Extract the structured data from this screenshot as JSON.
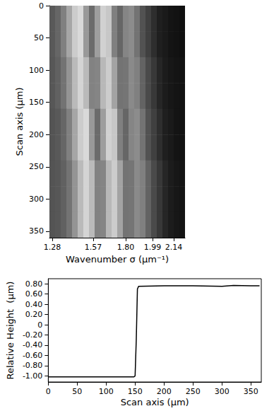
{
  "chart_data": [
    {
      "type": "heatmap",
      "x_label": "Wavenumber σ (μm⁻¹)",
      "y_label": "Scan axis (μm)",
      "xlim": [
        1.26,
        2.22
      ],
      "xticks": [
        1.28,
        1.57,
        {
          "value": 1.8,
          "label": "1.80"
        },
        1.99,
        2.14
      ],
      "ylim": [
        0,
        360
      ],
      "yticks": [
        0,
        50,
        100,
        150,
        200,
        250,
        300,
        350
      ],
      "zlim": [
        0,
        1
      ],
      "x_bins": [
        1.26,
        1.3,
        1.34,
        1.38,
        1.42,
        1.46,
        1.5,
        1.54,
        1.58,
        1.62,
        1.66,
        1.7,
        1.74,
        1.78,
        1.82,
        1.86,
        1.9,
        1.94,
        1.98,
        2.02,
        2.06,
        2.1,
        2.14,
        2.18,
        2.22
      ],
      "y_bins": [
        0,
        40,
        80,
        120,
        160,
        200,
        240,
        280,
        320,
        360
      ],
      "cells": [
        [
          0.35,
          0.4,
          0.5,
          0.65,
          0.8,
          0.85,
          0.6,
          0.42,
          0.62,
          0.82,
          0.78,
          0.5,
          0.4,
          0.52,
          0.55,
          0.45,
          0.32,
          0.25,
          0.18,
          0.12,
          0.1,
          0.08,
          0.07,
          0.06
        ],
        [
          0.35,
          0.4,
          0.5,
          0.65,
          0.8,
          0.85,
          0.6,
          0.42,
          0.62,
          0.82,
          0.78,
          0.5,
          0.4,
          0.52,
          0.55,
          0.45,
          0.32,
          0.25,
          0.18,
          0.12,
          0.1,
          0.08,
          0.07,
          0.06
        ],
        [
          0.34,
          0.38,
          0.45,
          0.58,
          0.73,
          0.83,
          0.73,
          0.51,
          0.52,
          0.72,
          0.8,
          0.64,
          0.45,
          0.46,
          0.54,
          0.5,
          0.39,
          0.29,
          0.22,
          0.15,
          0.11,
          0.09,
          0.08,
          0.07
        ],
        [
          0.34,
          0.38,
          0.45,
          0.58,
          0.73,
          0.83,
          0.73,
          0.51,
          0.52,
          0.72,
          0.8,
          0.64,
          0.45,
          0.46,
          0.54,
          0.5,
          0.39,
          0.29,
          0.22,
          0.15,
          0.11,
          0.09,
          0.08,
          0.07
        ],
        [
          0.33,
          0.35,
          0.4,
          0.5,
          0.65,
          0.8,
          0.85,
          0.6,
          0.42,
          0.62,
          0.82,
          0.78,
          0.5,
          0.4,
          0.52,
          0.55,
          0.45,
          0.32,
          0.25,
          0.18,
          0.12,
          0.1,
          0.08,
          0.07
        ],
        [
          0.33,
          0.35,
          0.4,
          0.5,
          0.65,
          0.8,
          0.85,
          0.6,
          0.42,
          0.62,
          0.82,
          0.78,
          0.5,
          0.4,
          0.52,
          0.55,
          0.45,
          0.32,
          0.25,
          0.18,
          0.12,
          0.1,
          0.08,
          0.07
        ],
        [
          0.33,
          0.34,
          0.38,
          0.45,
          0.58,
          0.73,
          0.83,
          0.73,
          0.51,
          0.52,
          0.72,
          0.8,
          0.64,
          0.45,
          0.46,
          0.54,
          0.5,
          0.39,
          0.29,
          0.22,
          0.15,
          0.11,
          0.09,
          0.08
        ],
        [
          0.33,
          0.34,
          0.38,
          0.45,
          0.58,
          0.73,
          0.83,
          0.73,
          0.51,
          0.52,
          0.72,
          0.8,
          0.64,
          0.45,
          0.46,
          0.54,
          0.5,
          0.39,
          0.29,
          0.22,
          0.15,
          0.11,
          0.09,
          0.08
        ],
        [
          0.33,
          0.34,
          0.38,
          0.45,
          0.58,
          0.73,
          0.83,
          0.73,
          0.51,
          0.52,
          0.72,
          0.8,
          0.64,
          0.45,
          0.46,
          0.54,
          0.5,
          0.39,
          0.29,
          0.22,
          0.15,
          0.11,
          0.09,
          0.08
        ]
      ]
    },
    {
      "type": "line",
      "x_label": "Scan axis (μm)",
      "y_label": "Relative Height  (μm)",
      "x": [
        0,
        50,
        100,
        148,
        150,
        152,
        154,
        156,
        200,
        250,
        300,
        320,
        350,
        365
      ],
      "values": [
        -1.02,
        -1.02,
        -1.02,
        -1.02,
        -1.0,
        -0.3,
        0.7,
        0.75,
        0.76,
        0.76,
        0.75,
        0.77,
        0.76,
        0.76
      ],
      "color": "#000000",
      "xlim": [
        0,
        368
      ],
      "xticks": [
        0,
        50,
        100,
        150,
        200,
        250,
        300,
        350
      ],
      "ylim": [
        -1.12,
        0.9
      ],
      "yticks": [
        {
          "value": -1,
          "label": "-1.00"
        },
        {
          "value": -0.8,
          "label": "-0.80"
        },
        {
          "value": -0.6,
          "label": "-0.60"
        },
        {
          "value": -0.4,
          "label": "-0.40"
        },
        {
          "value": -0.2,
          "label": "-0.20"
        },
        0,
        {
          "value": 0.2,
          "label": "0.20"
        },
        {
          "value": 0.4,
          "label": "0.40"
        },
        {
          "value": 0.6,
          "label": "0.60"
        },
        {
          "value": 0.8,
          "label": "0.80"
        }
      ]
    }
  ]
}
